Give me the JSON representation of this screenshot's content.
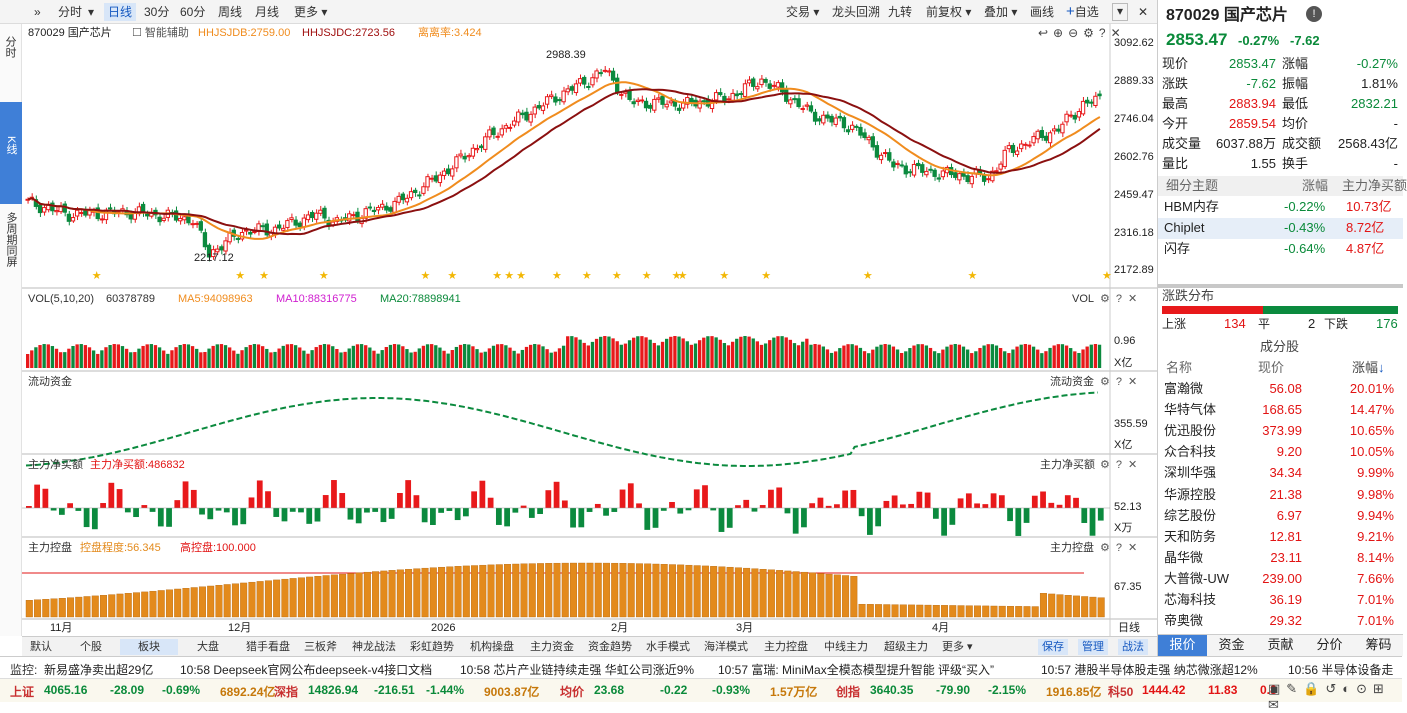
{
  "toolbar": {
    "menu": "»",
    "fenshi": "分时",
    "kline": "日线",
    "m30": "30分",
    "m60": "60分",
    "week": "周线",
    "month": "月线",
    "more": "更多",
    "trade": "交易",
    "dragon": "龙头回溯",
    "jiuzhuan": "九转",
    "fq": "前复权",
    "overlay": "叠加",
    "draw": "画线",
    "addfav": "自选",
    "plus": "+"
  },
  "left_nav": {
    "fenshi": "分时",
    "kline": "K线",
    "multi": "多周期同屏"
  },
  "chart": {
    "header": {
      "code": "870029 国产芯片",
      "assist": "智能辅助",
      "jdb": "HHJSJDB:2759.00",
      "jdc": "HHJSJDC:2723.56",
      "dev": "离离率:3.424"
    },
    "price_axis": [
      "3092.62",
      "2889.33",
      "2746.04",
      "2602.76",
      "2459.47",
      "2316.18",
      "2172.89"
    ],
    "high_label": "2988.39",
    "low_label": "2217.12",
    "vol": {
      "title": "VOL(5,10,20)",
      "v": "60378789",
      "ma5": "MA5:94098963",
      "ma10": "MA10:88316775",
      "ma20": "MA20:78898941",
      "tag": "VOL",
      "axis": "0.96",
      "unit": "X亿"
    },
    "flow": {
      "title": "流动资金",
      "tag": "流动资金",
      "axis": "355.59",
      "unit": "X亿"
    },
    "net": {
      "title": "主力净买额",
      "val": "主力净买额:486832",
      "tag": "主力净买额",
      "axis": "52.13",
      "unit": "X万"
    },
    "ctrl": {
      "title": "主力控盘",
      "deg": "控盘程度:56.345",
      "high": "高控盘:100.000",
      "tag": "主力控盘",
      "axis": "67.35"
    },
    "time_axis": [
      "11月",
      "12月",
      "2026",
      "2月",
      "3月",
      "4月"
    ],
    "period_tag": "日线",
    "colors": {
      "up": "#e8191b",
      "down": "#0b8a3e",
      "ma_fast": "#f08c1e",
      "ma_slow": "#8b1010",
      "ctrl": "#e38a1c",
      "flow": "#0b8a3e"
    }
  },
  "bottom_tabs": [
    "默认",
    "个股",
    "板块",
    "大盘",
    "猎手看盘",
    "三板斧",
    "神龙战法",
    "彩虹趋势",
    "机构操盘",
    "主力资金",
    "资金趋势",
    "水手模式",
    "海洋模式",
    "主力控盘",
    "中线主力",
    "超级主力",
    "更多"
  ],
  "bottom_right": [
    "保存",
    "管理",
    "战法"
  ],
  "quote": {
    "title": "870029 国产芯片",
    "price": "2853.47",
    "chg_pct": "-0.27%",
    "chg": "-7.62",
    "rows": [
      [
        "现价",
        "2853.47",
        "涨幅",
        "-0.27%"
      ],
      [
        "涨跌",
        "-7.62",
        "振幅",
        "1.81%"
      ],
      [
        "最高",
        "2883.94",
        "最低",
        "2832.21"
      ],
      [
        "今开",
        "2859.54",
        "均价",
        "-"
      ],
      [
        "成交量",
        "6037.88万",
        "成交额",
        "2568.43亿"
      ],
      [
        "量比",
        "1.55",
        "换手",
        "-"
      ]
    ]
  },
  "themes": {
    "header": [
      "细分主题",
      "涨幅",
      "主力净买额"
    ],
    "rows": [
      [
        "HBM内存",
        "-0.22%",
        "10.73亿"
      ],
      [
        "Chiplet",
        "-0.43%",
        "8.72亿"
      ],
      [
        "闪存",
        "-0.64%",
        "4.87亿"
      ]
    ]
  },
  "breadth": {
    "title": "涨跌分布",
    "up_label": "上涨",
    "up": "134",
    "flat_label": "平",
    "flat": "2",
    "down_label": "下跌",
    "down": "176",
    "up_frac": 0.43,
    "flat_frac": 0.006
  },
  "components": {
    "title": "成分股",
    "header": [
      "名称",
      "现价",
      "涨幅"
    ],
    "rows": [
      [
        "富瀚微",
        "56.08",
        "20.01%"
      ],
      [
        "华特气体",
        "168.65",
        "14.47%"
      ],
      [
        "优迅股份",
        "373.99",
        "10.65%"
      ],
      [
        "众合科技",
        "9.20",
        "10.05%"
      ],
      [
        "深圳华强",
        "34.34",
        "9.99%"
      ],
      [
        "华源控股",
        "21.38",
        "9.98%"
      ],
      [
        "综艺股份",
        "6.97",
        "9.94%"
      ],
      [
        "天和防务",
        "12.81",
        "9.21%"
      ],
      [
        "晶华微",
        "23.11",
        "8.14%"
      ],
      [
        "大普微-UW",
        "239.00",
        "7.66%"
      ],
      [
        "芯海科技",
        "36.19",
        "7.01%"
      ],
      [
        "帝奥微",
        "29.32",
        "7.01%"
      ]
    ]
  },
  "right_tabs": [
    "报价",
    "资金",
    "贡献",
    "分价",
    "筹码"
  ],
  "news": {
    "label": "监控:",
    "items": [
      "新易盛净卖出超29亿",
      "10:58 Deepseek官网公布deepseek-v4接口文档",
      "10:58 芯片产业链持续走强 华虹公司涨近9%",
      "10:57 富瑞: MiniMax全模态模型提升智能 评级“买入”",
      "10:57 港股半导体股走强 纳芯微涨超12%",
      "10:56 半导体设备走"
    ]
  },
  "indices": [
    {
      "name": "上证",
      "val": "4065.16",
      "chg": "-28.09",
      "pct": "-0.69%",
      "amt": "6892.24亿"
    },
    {
      "name": "深指",
      "val": "14826.94",
      "chg": "-216.51",
      "pct": "-1.44%",
      "amt": "9003.87亿"
    },
    {
      "name": "均价",
      "val": "23.68",
      "chg": "-0.22",
      "pct": "-0.93%",
      "amt": "1.57万亿"
    },
    {
      "name": "创指",
      "val": "3640.35",
      "chg": "-79.90",
      "pct": "-2.15%",
      "amt": "1916.85亿"
    },
    {
      "name": "科50",
      "val": "1444.42",
      "chg": "11.83",
      "pct": "0.8"
    }
  ]
}
